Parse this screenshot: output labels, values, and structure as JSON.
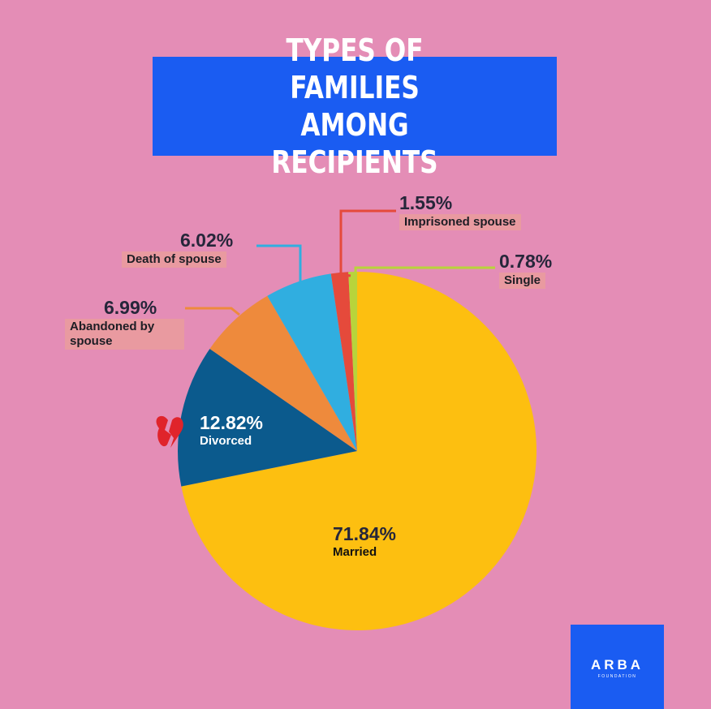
{
  "chart_data": {
    "type": "pie",
    "title": "TYPES OF FAMILIES AMONG RECIPIENTS",
    "categories": [
      "Married",
      "Divorced",
      "Abandoned by spouse",
      "Death of spouse",
      "Imprisoned spouse",
      "Single"
    ],
    "values": [
      71.84,
      12.82,
      6.99,
      6.02,
      1.55,
      0.78
    ],
    "value_labels": [
      "71.84%",
      "12.82%",
      "6.99%",
      "6.02%",
      "1.55%",
      "0.78%"
    ],
    "colors": [
      "#fdbf10",
      "#0b5a8d",
      "#ee8a3c",
      "#30aee0",
      "#e54a3b",
      "#b8d43b"
    ]
  },
  "logo": {
    "name": "ARBA",
    "subtitle": "FOUNDATION"
  }
}
